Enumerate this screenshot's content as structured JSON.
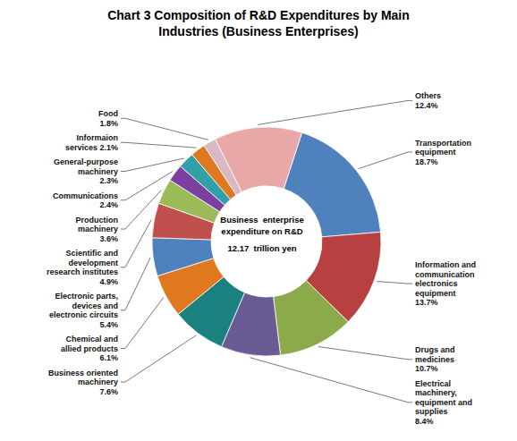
{
  "chart_data": {
    "type": "pie",
    "title": "Chart 3 Composition of R&D Expenditures by Main\nIndustries (Business Enterprises)",
    "categories": [
      "Transportation\nequipment\n18.7%",
      "Information and\ncommunication\nelectronics\nequipment\n13.7%",
      "Drugs and\nmedicines\n10.7%",
      "Electrical\nmachinery,\nequipment and\nsupplies\n8.4%",
      "Business oriented\nmachinery\n7.6%",
      "Chemical and\nallied products\n6.1%",
      "Electronic parts,\ndevices and\nelectronic circuits\n5.4%",
      "Scientific and\ndevelopment\nresearch institutes\n4.9%",
      "Production\nmachinery\n3.6%",
      "Communications\n2.4%",
      "General-purpose\nmachinery\n2.3%",
      "Informaion\nservices 2.1%",
      "Food\n1.8%",
      "Others\n12.4%"
    ],
    "values": [
      18.7,
      13.7,
      10.7,
      8.4,
      7.6,
      6.1,
      5.4,
      4.9,
      3.6,
      2.4,
      2.3,
      2.1,
      1.8,
      12.4
    ],
    "colors": [
      "#4F81BD",
      "#B94040",
      "#8DAA4A",
      "#6B5B95",
      "#1A8080",
      "#E07820",
      "#4F81BD",
      "#C0504D",
      "#9BBB59",
      "#7B3FA0",
      "#31A0A8",
      "#E07820",
      "#D9B8C4",
      "#E8A8A8"
    ],
    "annotations": [
      "Business  enterprise",
      "expenditure on R&D",
      "12.17  trillion yen"
    ]
  }
}
